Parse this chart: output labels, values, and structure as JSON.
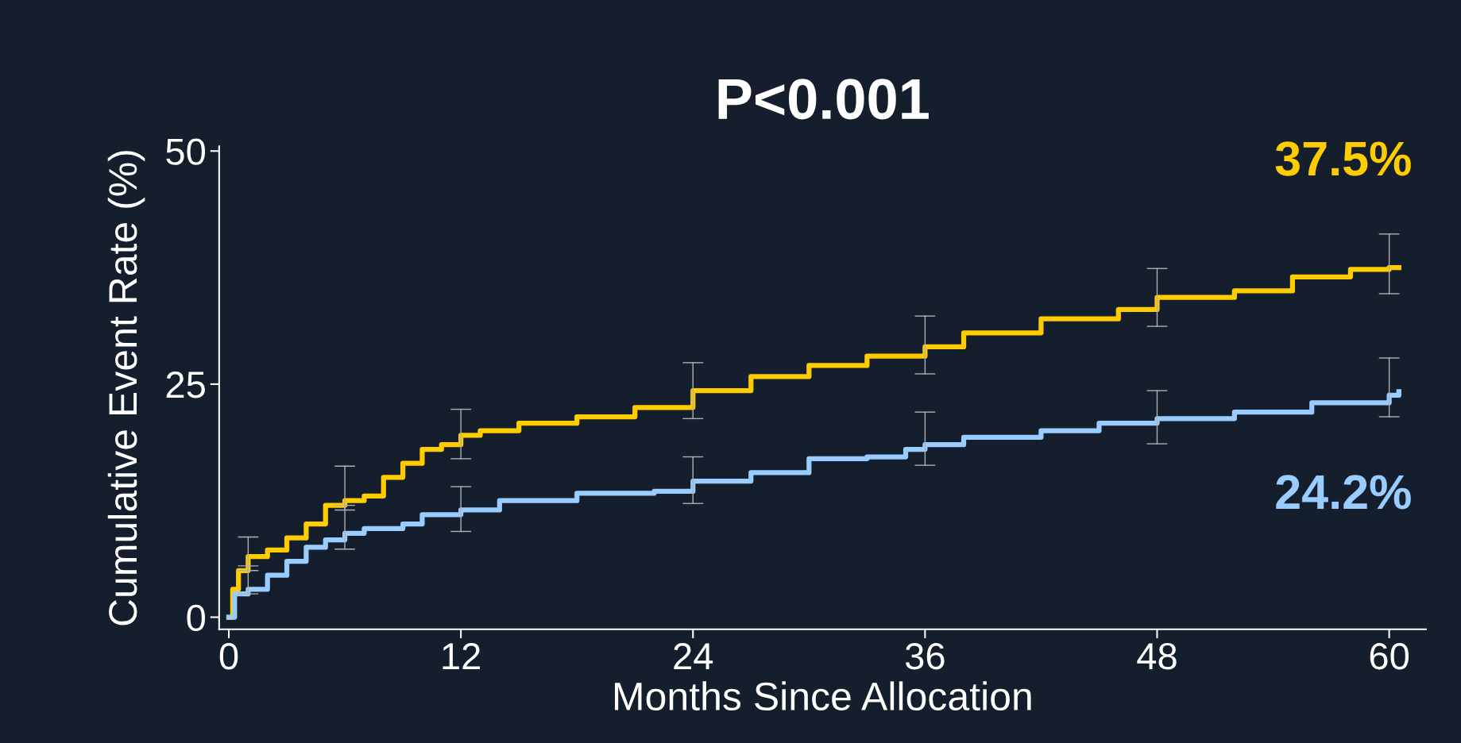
{
  "chart_data": {
    "type": "step",
    "title": "P<0.001",
    "xlabel": "Months Since Allocation",
    "ylabel": "Cumulative Event Rate (%)",
    "xlim": [
      -0.5,
      61.9
    ],
    "ylim": [
      -1.3,
      50.5
    ],
    "xticks": [
      0,
      12,
      24,
      36,
      48,
      60
    ],
    "yticks": [
      0,
      25,
      50
    ],
    "grid": false,
    "marker": "none",
    "line_style": "solid",
    "series": [
      {
        "color": "#ffcc00",
        "x": [
          0,
          0.2,
          0.5,
          1,
          2,
          3,
          4,
          5,
          6,
          7,
          8,
          9,
          10,
          11,
          12,
          13,
          15,
          18,
          21,
          24,
          27,
          30,
          33,
          36,
          38,
          42,
          46,
          48,
          52,
          55,
          58,
          60,
          60.5
        ],
        "values": [
          0,
          3,
          5,
          6.5,
          7.2,
          8.5,
          10,
          12,
          12.5,
          13,
          15,
          16.5,
          18,
          18.5,
          19.5,
          20,
          20.8,
          21.5,
          22.5,
          24.3,
          25.8,
          27,
          28,
          29,
          30.5,
          32,
          33,
          34.3,
          35,
          36.5,
          37.3,
          37.5,
          37.5
        ],
        "errors": [
          null,
          null,
          null,
          [
            5,
            8.6
          ],
          null,
          null,
          null,
          null,
          [
            11.5,
            16.2
          ],
          null,
          null,
          null,
          null,
          null,
          [
            17,
            22.3
          ],
          null,
          null,
          null,
          null,
          [
            21.3,
            27.3
          ],
          null,
          null,
          null,
          [
            26.1,
            32.3
          ],
          null,
          null,
          null,
          [
            31.2,
            37.4
          ],
          null,
          null,
          null,
          [
            34.7,
            41.1
          ],
          null
        ],
        "value_labels": [
          null,
          null,
          null,
          null,
          null,
          null,
          null,
          null,
          null,
          null,
          null,
          null,
          null,
          null,
          null,
          null,
          null,
          null,
          null,
          null,
          null,
          null,
          null,
          null,
          null,
          null,
          null,
          null,
          null,
          null,
          null,
          null,
          "37.5%"
        ]
      },
      {
        "color": "#99ccff",
        "x": [
          0,
          0.3,
          1,
          2,
          3,
          4,
          5,
          6,
          7,
          9,
          10,
          12,
          14,
          18,
          22,
          24,
          27,
          30,
          33,
          35,
          36,
          38,
          42,
          45,
          48,
          52,
          56,
          60,
          60.5
        ],
        "values": [
          0,
          2.5,
          3,
          4.5,
          6,
          7.5,
          8.3,
          9,
          9.5,
          10,
          11,
          11.5,
          12.5,
          13.3,
          13.5,
          14.6,
          15.5,
          17,
          17.2,
          18,
          18.5,
          19.3,
          20,
          20.8,
          21.3,
          22,
          23,
          23.8,
          24.2
        ],
        "errors": [
          null,
          null,
          [
            2.5,
            5.5
          ],
          null,
          null,
          null,
          null,
          [
            7.3,
            12
          ],
          null,
          null,
          null,
          [
            9.2,
            14
          ],
          null,
          null,
          null,
          [
            12.2,
            17.2
          ],
          null,
          null,
          null,
          null,
          [
            16.3,
            22
          ],
          null,
          null,
          null,
          [
            18.6,
            24.3
          ],
          null,
          null,
          [
            21.5,
            27.8
          ],
          null
        ],
        "value_labels": [
          null,
          null,
          null,
          null,
          null,
          null,
          null,
          null,
          null,
          null,
          null,
          null,
          null,
          null,
          null,
          null,
          null,
          null,
          null,
          null,
          null,
          null,
          null,
          null,
          null,
          null,
          null,
          null,
          "24.2%"
        ]
      }
    ]
  }
}
